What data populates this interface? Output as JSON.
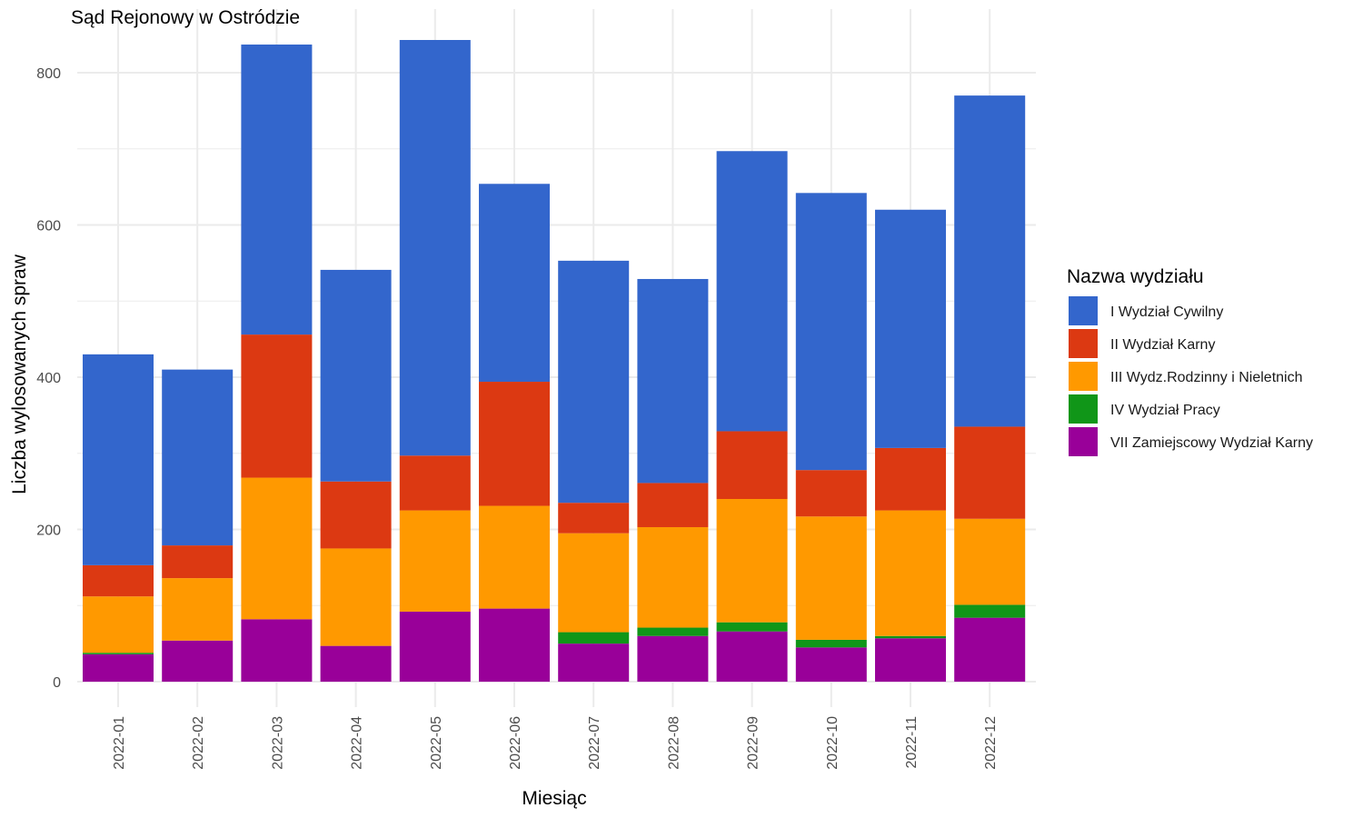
{
  "chart_data": {
    "type": "bar",
    "stacked": true,
    "title": "Sąd Rejonowy w Ostródzie",
    "xlabel": "Miesiąc",
    "ylabel": "Liczba wylosowanych spraw",
    "ylim": [
      0,
      880
    ],
    "yticks": [
      0,
      200,
      400,
      600,
      800
    ],
    "grid": true,
    "legend_title": "Nazwa wydziału",
    "legend_position": "right",
    "categories": [
      "2022-01",
      "2022-02",
      "2022-03",
      "2022-04",
      "2022-05",
      "2022-06",
      "2022-07",
      "2022-08",
      "2022-09",
      "2022-10",
      "2022-11",
      "2022-12"
    ],
    "series": [
      {
        "name": "VII Zamiejscowy Wydział Karny",
        "color": "#990099",
        "values": [
          36,
          54,
          82,
          47,
          92,
          96,
          50,
          60,
          66,
          45,
          57,
          84
        ]
      },
      {
        "name": "IV Wydział Pracy",
        "color": "#109618",
        "values": [
          2,
          0,
          0,
          0,
          0,
          0,
          15,
          11,
          12,
          10,
          3,
          17
        ]
      },
      {
        "name": "III Wydz.Rodzinny i Nieletnich",
        "color": "#ff9900",
        "values": [
          74,
          82,
          186,
          128,
          133,
          135,
          130,
          132,
          162,
          162,
          165,
          113
        ]
      },
      {
        "name": "II Wydział Karny",
        "color": "#dc3912",
        "values": [
          41,
          43,
          188,
          88,
          72,
          163,
          40,
          58,
          89,
          61,
          82,
          121
        ]
      },
      {
        "name": "I Wydział Cywilny",
        "color": "#3366cc",
        "values": [
          277,
          231,
          381,
          278,
          546,
          260,
          318,
          268,
          368,
          364,
          313,
          435
        ]
      }
    ],
    "legend_order": [
      "I Wydział Cywilny",
      "II Wydział Karny",
      "III Wydz.Rodzinny i Nieletnich",
      "IV Wydział Pracy",
      "VII Zamiejscowy Wydział Karny"
    ]
  }
}
